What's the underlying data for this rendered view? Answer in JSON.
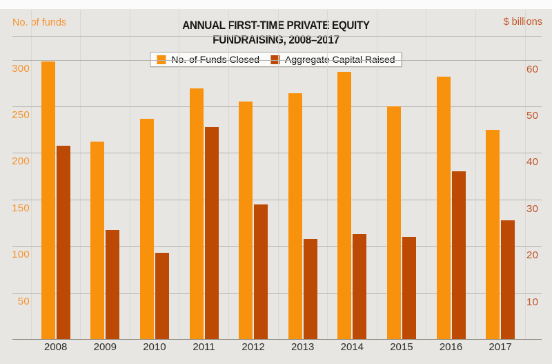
{
  "header": {
    "left_axis_title": "No. of funds",
    "right_axis_title": "$ billions",
    "title_line1": "ANNUAL FIRST-TIME PRIVATE EQUITY",
    "title_line2": "FUNDRAISING, 2008–2017"
  },
  "legend": {
    "items": [
      {
        "label": "No. of Funds Closed",
        "color": "#F8910B"
      },
      {
        "label": "Aggregate Capital Raised",
        "color": "#BC4A04"
      }
    ]
  },
  "chart_data": {
    "type": "bar",
    "title": "ANNUAL FIRST-TIME PRIVATE EQUITY FUNDRAISING, 2008–2017",
    "categories": [
      "2008",
      "2009",
      "2010",
      "2011",
      "2012",
      "2013",
      "2014",
      "2015",
      "2016",
      "2017"
    ],
    "series": [
      {
        "name": "No. of Funds Closed",
        "axis": "left",
        "color": "#F8910B",
        "values": [
          298,
          212,
          237,
          269,
          255,
          264,
          287,
          250,
          282,
          225
        ]
      },
      {
        "name": "Aggregate Capital Raised",
        "axis": "right",
        "color": "#BC4A04",
        "values": [
          41.5,
          23.5,
          18.5,
          45.5,
          29,
          21.5,
          22.5,
          22,
          36,
          25.5
        ]
      }
    ],
    "left_axis": {
      "label": "No. of funds",
      "ticks": [
        300,
        250,
        200,
        150,
        100,
        50
      ],
      "range": [
        0,
        325
      ]
    },
    "right_axis": {
      "label": "$ billions",
      "ticks": [
        60,
        50,
        40,
        30,
        20,
        10
      ],
      "range": [
        0,
        65
      ]
    },
    "grid": true,
    "legend_position": "top-center"
  },
  "colors": {
    "background_panel": "#E8E6E3",
    "background_top": "#FBFBFB",
    "funds_bar": "#F8910B",
    "capital_bar": "#BC4A04",
    "left_axis_text": "#F59430",
    "right_axis_text": "#C05228",
    "gridline": "#B5B3B0",
    "gridline_vertical": "#DAD8D4",
    "baseline": "#98968F",
    "title_text": "#161616",
    "tick_text": "#2B2B2B",
    "legend_bg": "#FBFBFA",
    "legend_border": "#A8A6A2"
  }
}
